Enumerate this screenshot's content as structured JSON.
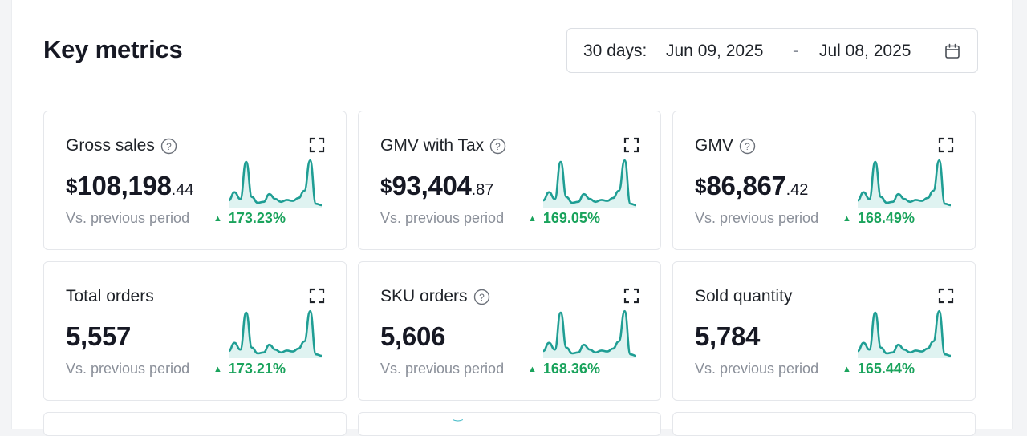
{
  "header": {
    "title": "Key metrics",
    "date_range": {
      "prefix": "30 days:",
      "start": "Jun 09, 2025",
      "separator": "-",
      "end": "Jul 08, 2025",
      "icon": "calendar-icon"
    }
  },
  "colors": {
    "positive": "#1aa35c",
    "sparkline_line": "#1f9e94",
    "sparkline_fill": "#dff3f1",
    "muted_text": "#8a8f99"
  },
  "sparkline_trend": [
    0.15,
    0.32,
    0.18,
    0.95,
    0.22,
    0.1,
    0.12,
    0.28,
    0.18,
    0.12,
    0.16,
    0.14,
    0.2,
    0.35,
    0.98,
    0.08,
    0.05
  ],
  "metrics": [
    {
      "title": "Gross sales",
      "has_help": true,
      "currency": "$",
      "value": "108,198",
      "decimals": ".44",
      "compare_label": "Vs. previous period",
      "change": "173.23%",
      "direction": "up"
    },
    {
      "title": "GMV with Tax",
      "has_help": true,
      "currency": "$",
      "value": "93,404",
      "decimals": ".87",
      "compare_label": "Vs. previous period",
      "change": "169.05%",
      "direction": "up"
    },
    {
      "title": "GMV",
      "has_help": true,
      "currency": "$",
      "value": "86,867",
      "decimals": ".42",
      "compare_label": "Vs. previous period",
      "change": "168.49%",
      "direction": "up"
    },
    {
      "title": "Total orders",
      "has_help": false,
      "currency": "",
      "value": "5,557",
      "decimals": "",
      "compare_label": "Vs. previous period",
      "change": "173.21%",
      "direction": "up"
    },
    {
      "title": "SKU orders",
      "has_help": true,
      "currency": "",
      "value": "5,606",
      "decimals": "",
      "compare_label": "Vs. previous period",
      "change": "168.36%",
      "direction": "up"
    },
    {
      "title": "Sold quantity",
      "has_help": false,
      "currency": "",
      "value": "5,784",
      "decimals": "",
      "compare_label": "Vs. previous period",
      "change": "165.44%",
      "direction": "up"
    }
  ],
  "icons": {
    "help": "help-circle-icon",
    "expand": "expand-icon",
    "trend_up": "triangle-up-icon"
  }
}
